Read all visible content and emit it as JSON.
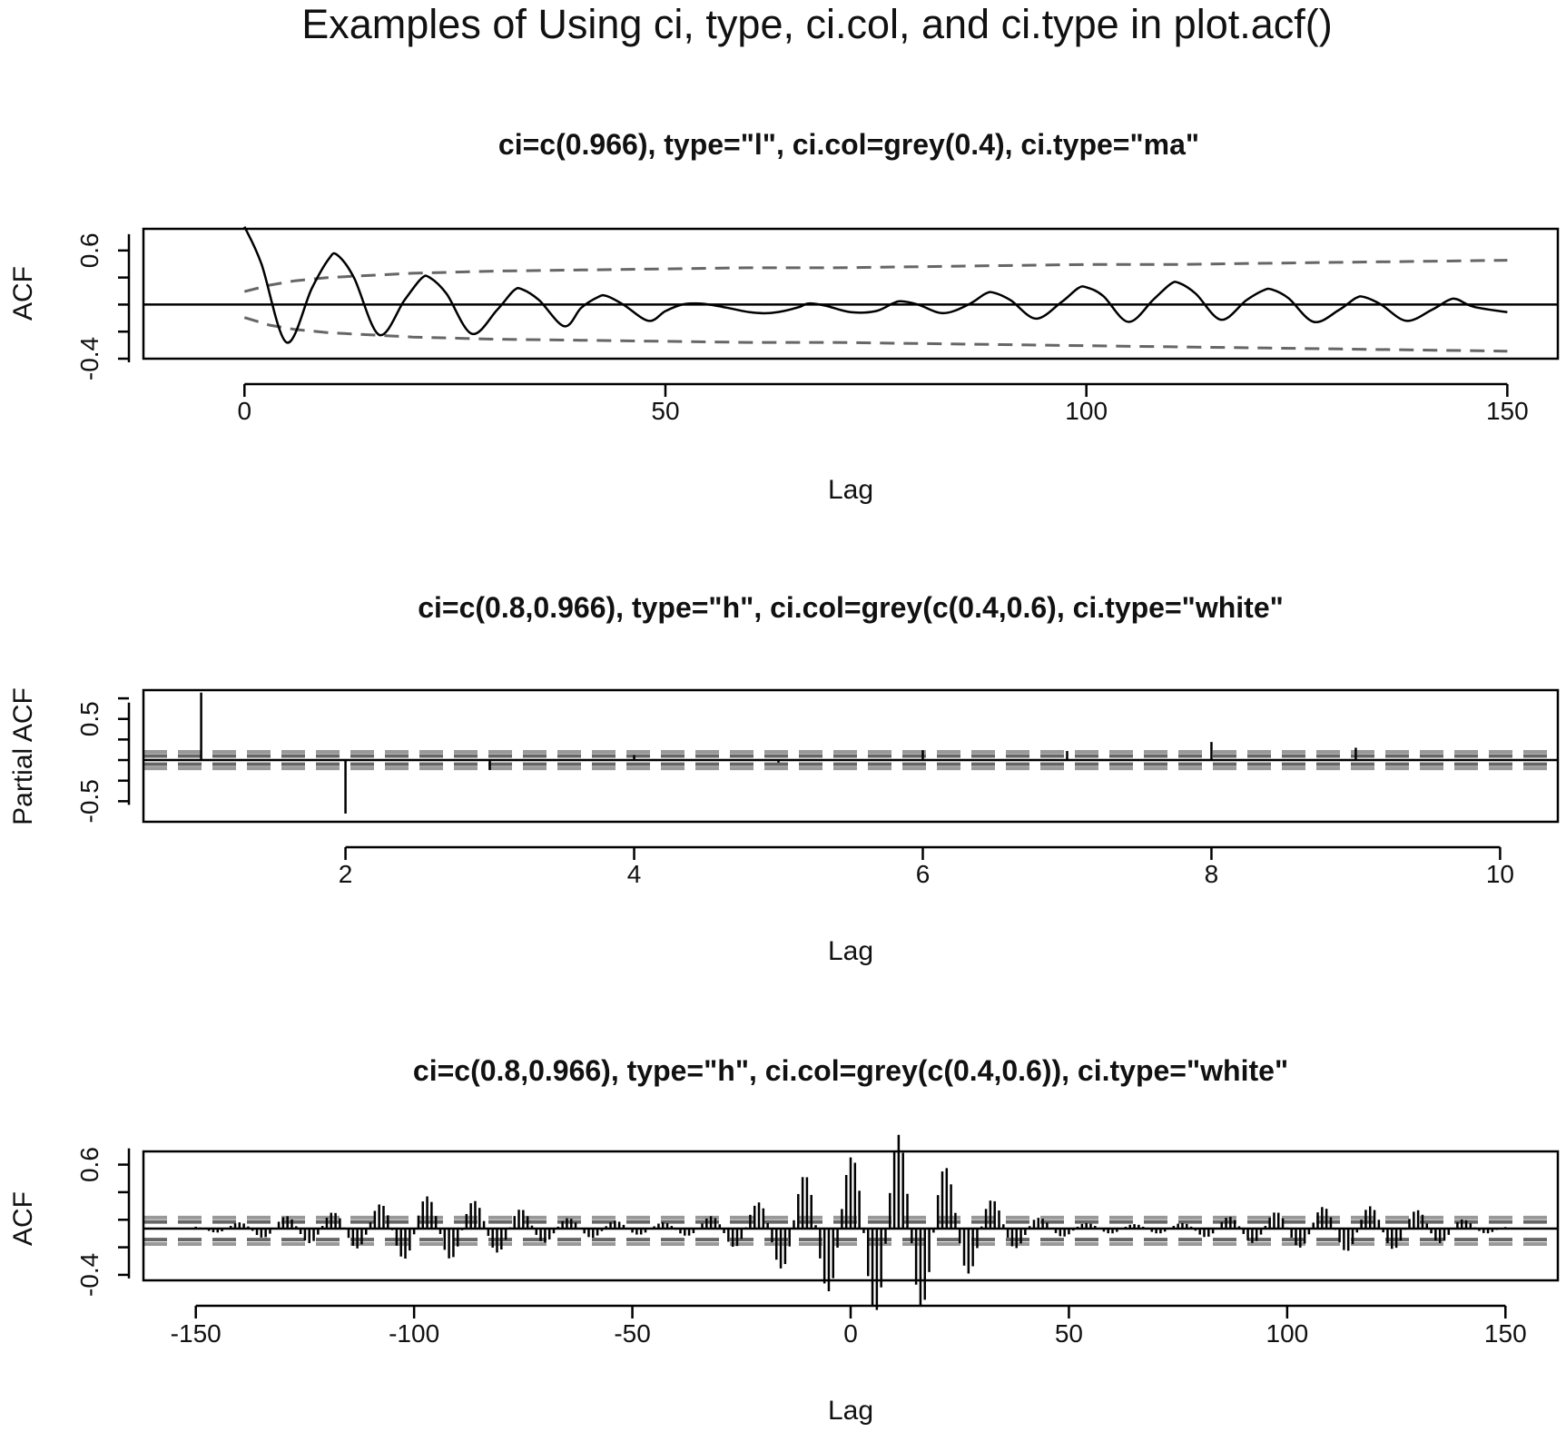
{
  "title": "Examples of Using ci, type, ci.col, and ci.type in plot.acf()",
  "colors": {
    "series": "#000000",
    "ci_dark": "#666666",
    "ci_light": "#999999",
    "axis": "#000000"
  },
  "chart_data": [
    {
      "type": "line",
      "title": "ci=c(0.966), type=\"l\", ci.col=grey(0.4), ci.type=\"ma\"",
      "xlabel": "Lag",
      "ylabel": "ACF",
      "xlim": [
        -12,
        156
      ],
      "ylim": [
        -0.4,
        0.8
      ],
      "xticks": [
        0,
        50,
        100,
        150
      ],
      "xtick_labels": [
        "0",
        "50",
        "100",
        "150"
      ],
      "yticks": [
        -0.4,
        0.1,
        0.6
      ],
      "ytick_labels": [
        "-0.4",
        "",
        "0.6"
      ],
      "ci": {
        "level": 0.966,
        "type": "ma",
        "color": "grey(0.4)"
      },
      "series": [
        {
          "x": [
            0,
            2,
            5,
            8,
            10,
            11,
            13,
            16,
            19,
            21,
            22,
            24,
            27,
            30,
            32,
            33,
            35,
            38,
            40,
            42,
            43,
            45,
            48,
            50,
            52,
            54,
            56,
            58,
            60,
            62,
            64,
            66,
            67,
            69,
            72,
            75,
            77,
            78,
            80,
            83,
            86,
            88,
            89,
            91,
            94,
            97,
            99,
            100,
            102,
            105,
            108,
            110,
            111,
            113,
            116,
            119,
            121,
            122,
            124,
            127,
            130,
            132,
            133,
            135,
            138,
            141,
            143,
            144,
            146,
            150
          ],
          "y": [
            0.82,
            0.48,
            -0.25,
            0.25,
            0.52,
            0.56,
            0.35,
            -0.18,
            0.14,
            0.34,
            0.35,
            0.2,
            -0.17,
            0.05,
            0.23,
            0.24,
            0.14,
            -0.1,
            0.07,
            0.17,
            0.18,
            0.1,
            -0.05,
            0.04,
            0.1,
            0.11,
            0.09,
            0.06,
            0.03,
            0.02,
            0.04,
            0.08,
            0.11,
            0.09,
            0.03,
            0.04,
            0.11,
            0.13,
            0.1,
            0.02,
            0.1,
            0.2,
            0.21,
            0.14,
            -0.03,
            0.12,
            0.25,
            0.26,
            0.18,
            -0.06,
            0.15,
            0.29,
            0.3,
            0.2,
            -0.04,
            0.14,
            0.23,
            0.24,
            0.16,
            -0.06,
            0.05,
            0.16,
            0.17,
            0.1,
            -0.05,
            0.05,
            0.14,
            0.15,
            0.08,
            0.03
          ]
        }
      ],
      "ci_band": {
        "x": [
          0,
          3,
          6,
          10,
          20,
          30,
          40,
          50,
          60,
          70,
          80,
          90,
          100,
          110,
          120,
          130,
          140,
          150
        ],
        "upper": [
          0.22,
          0.28,
          0.32,
          0.35,
          0.39,
          0.41,
          0.42,
          0.43,
          0.44,
          0.44,
          0.45,
          0.46,
          0.47,
          0.47,
          0.48,
          0.49,
          0.5,
          0.51
        ],
        "lower": [
          -0.02,
          -0.09,
          -0.13,
          -0.16,
          -0.2,
          -0.22,
          -0.23,
          -0.24,
          -0.25,
          -0.25,
          -0.26,
          -0.27,
          -0.28,
          -0.29,
          -0.3,
          -0.31,
          -0.32,
          -0.33
        ]
      }
    },
    {
      "type": "bar",
      "title": "ci=c(0.8,0.966), type=\"h\", ci.col=grey(c(0.4,0.6), ci.type=\"white\"",
      "xlabel": "Lag",
      "ylabel": "Partial ACF",
      "xlim": [
        0.6,
        10.4
      ],
      "ylim": [
        -0.75,
        0.85
      ],
      "xticks": [
        2,
        4,
        6,
        8,
        10
      ],
      "xtick_labels": [
        "2",
        "4",
        "6",
        "8",
        "10"
      ],
      "yticks": [
        -0.5,
        0.0,
        0.5
      ],
      "ytick_labels": [
        "-0.5",
        "",
        "0.5"
      ],
      "ci": {
        "levels": [
          0.8,
          0.966
        ],
        "type": "white",
        "colors": [
          "grey(0.4)",
          "grey(0.6)"
        ],
        "bounds": [
          0.1,
          0.05,
          -0.05,
          -0.1
        ]
      },
      "x": [
        1,
        2,
        3,
        4,
        5,
        6,
        7,
        8,
        9,
        10
      ],
      "values": [
        0.82,
        -0.65,
        -0.12,
        0.06,
        -0.03,
        0.12,
        0.11,
        0.22,
        0.15,
        0.0
      ]
    },
    {
      "type": "bar",
      "title": "ci=c(0.8,0.966), type=\"h\", ci.col=grey(c(0.4,0.6)), ci.type=\"white\"",
      "xlabel": "Lag",
      "ylabel": "ACF",
      "xlim": [
        -162,
        162
      ],
      "ylim": [
        -0.45,
        0.72
      ],
      "xticks": [
        -150,
        -100,
        -50,
        0,
        50,
        100,
        150
      ],
      "xtick_labels": [
        "-150",
        "-100",
        "-50",
        "0",
        "50",
        "100",
        "150"
      ],
      "yticks": [
        -0.4,
        0.1,
        0.6
      ],
      "ytick_labels": [
        "-0.4",
        "",
        "0.6"
      ],
      "ci": {
        "levels": [
          0.8,
          0.966
        ],
        "type": "white",
        "colors": [
          "grey(0.4)",
          "grey(0.6)"
        ],
        "bounds": [
          0.12,
          0.08,
          -0.08,
          -0.12
        ]
      },
      "period": 10.8,
      "peak_lag": 0,
      "peaks": [
        {
          "lag": -150,
          "value": 0.02
        },
        {
          "lag": -139,
          "value": -0.06
        },
        {
          "lag": -128,
          "value": -0.12
        },
        {
          "lag": -118,
          "value": -0.15
        },
        {
          "lag": -110,
          "value": 0.2
        },
        {
          "lag": -100,
          "value": 0.3
        },
        {
          "lag": -89,
          "value": 0.27
        },
        {
          "lag": -78,
          "value": 0.2
        },
        {
          "lag": -67,
          "value": 0.1
        },
        {
          "lag": -57,
          "value": -0.08
        },
        {
          "lag": -46,
          "value": 0.05
        },
        {
          "lag": -36,
          "value": -0.07
        },
        {
          "lag": -22,
          "value": 0.22
        },
        {
          "lag": -11,
          "value": 0.48
        },
        {
          "lag": 0,
          "value": 0.65
        },
        {
          "lag": 11,
          "value": 0.85
        },
        {
          "lag": 21,
          "value": 0.58
        },
        {
          "lag": 32,
          "value": 0.27
        },
        {
          "lag": 43,
          "value": 0.1
        },
        {
          "lag": 54,
          "value": -0.05
        },
        {
          "lag": 65,
          "value": -0.04
        },
        {
          "lag": 76,
          "value": -0.05
        },
        {
          "lag": 89,
          "value": 0.12
        },
        {
          "lag": 100,
          "value": 0.16
        },
        {
          "lag": 111,
          "value": 0.21
        },
        {
          "lag": 121,
          "value": 0.2
        },
        {
          "lag": 132,
          "value": 0.16
        },
        {
          "lag": 143,
          "value": -0.06
        },
        {
          "lag": 150,
          "value": -0.02
        }
      ]
    }
  ]
}
